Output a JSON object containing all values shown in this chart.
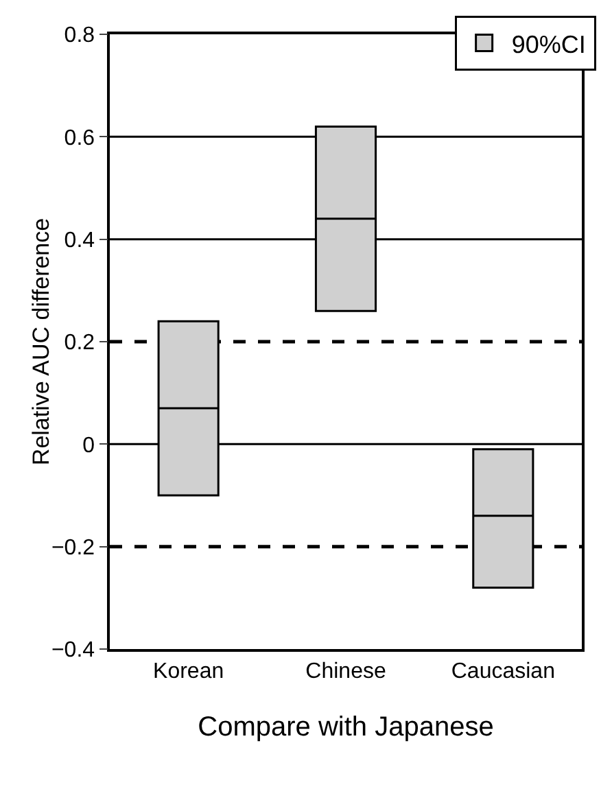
{
  "chart_data": {
    "type": "box",
    "ylabel": "Relative AUC difference",
    "xlabel": "Compare with Japanese",
    "categories": [
      "Korean",
      "Chinese",
      "Caucasian"
    ],
    "series": [
      {
        "name": "90%CI",
        "color": "#d0d0d0",
        "boxes": [
          {
            "q1": -0.1,
            "median": 0.07,
            "q3": 0.24
          },
          {
            "q1": 0.26,
            "median": 0.44,
            "q3": 0.62
          },
          {
            "q1": -0.28,
            "median": -0.14,
            "q3": -0.01
          }
        ]
      }
    ],
    "ylim": [
      -0.4,
      0.8
    ],
    "yticks": [
      -0.4,
      -0.2,
      0,
      0.2,
      0.4,
      0.6,
      0.8
    ],
    "ref_lines": [
      {
        "axis": "y",
        "value": 0.6,
        "line_style": "solid"
      },
      {
        "axis": "y",
        "value": 0.4,
        "line_style": "solid"
      },
      {
        "axis": "y",
        "value": 0.2,
        "line_style": "dashed"
      },
      {
        "axis": "y",
        "value": 0,
        "line_style": "solid"
      },
      {
        "axis": "y",
        "value": -0.2,
        "line_style": "dashed"
      }
    ],
    "legend": "top right"
  }
}
